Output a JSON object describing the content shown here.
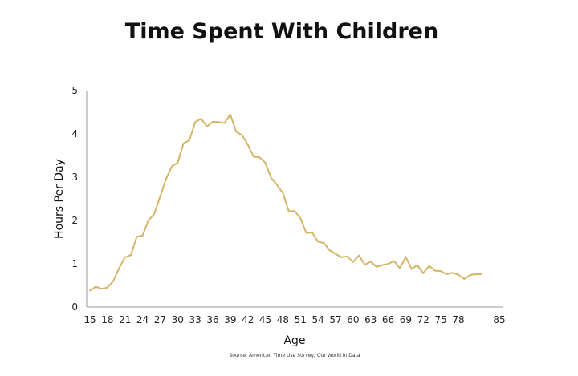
{
  "chart_data": {
    "type": "line",
    "title": "Time Spent With Children",
    "xlabel": "Age",
    "ylabel": "Hours Per Day",
    "source": "Source: American Time Use Survey, Our World in Data",
    "xlim": [
      15,
      85
    ],
    "ylim": [
      0,
      5
    ],
    "x_ticks": [
      15,
      18,
      21,
      24,
      27,
      30,
      33,
      36,
      39,
      42,
      45,
      48,
      51,
      54,
      57,
      60,
      63,
      66,
      69,
      72,
      75,
      78,
      85
    ],
    "y_ticks": [
      0,
      1,
      2,
      3,
      4,
      5
    ],
    "grid": false,
    "line_color": "#d4b568",
    "x": [
      15,
      16,
      17,
      18,
      19,
      20,
      21,
      22,
      23,
      24,
      25,
      26,
      27,
      28,
      29,
      30,
      31,
      32,
      33,
      34,
      35,
      36,
      37,
      38,
      39,
      40,
      41,
      42,
      43,
      44,
      45,
      46,
      47,
      48,
      49,
      50,
      51,
      52,
      53,
      54,
      55,
      56,
      57,
      58,
      59,
      60,
      61,
      62,
      63,
      64,
      65,
      66,
      67,
      68,
      69,
      70,
      71,
      72,
      73,
      74,
      75,
      76,
      77,
      78,
      79,
      80,
      81,
      82
    ],
    "values": [
      0.38,
      0.47,
      0.42,
      0.45,
      0.6,
      0.9,
      1.15,
      1.2,
      1.62,
      1.65,
      2.0,
      2.15,
      2.55,
      2.95,
      3.25,
      3.33,
      3.78,
      3.85,
      4.27,
      4.35,
      4.17,
      4.28,
      4.27,
      4.25,
      4.45,
      4.05,
      3.97,
      3.75,
      3.47,
      3.46,
      3.33,
      2.98,
      2.82,
      2.63,
      2.21,
      2.22,
      2.05,
      1.71,
      1.72,
      1.51,
      1.48,
      1.31,
      1.23,
      1.15,
      1.17,
      1.04,
      1.19,
      0.98,
      1.05,
      0.93,
      0.97,
      1.0,
      1.06,
      0.9,
      1.16,
      0.88,
      0.97,
      0.78,
      0.95,
      0.84,
      0.83,
      0.76,
      0.79,
      0.75,
      0.65,
      0.74,
      0.76,
      0.76
    ]
  }
}
